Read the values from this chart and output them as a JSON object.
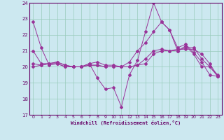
{
  "title": "Windchill (Refroidissement éolien,°C)",
  "bg_color": "#cce8f0",
  "grid_color": "#99ccbb",
  "line_color": "#993399",
  "spine_color": "#660066",
  "xlim": [
    -0.5,
    23.5
  ],
  "ylim": [
    17,
    24
  ],
  "yticks": [
    17,
    18,
    19,
    20,
    21,
    22,
    23,
    24
  ],
  "xticks": [
    0,
    1,
    2,
    3,
    4,
    5,
    6,
    7,
    8,
    9,
    10,
    11,
    12,
    13,
    14,
    15,
    16,
    17,
    18,
    19,
    20,
    21,
    22,
    23
  ],
  "series": [
    {
      "x": [
        0,
        1,
        2,
        3,
        4,
        5,
        6,
        7,
        8,
        9,
        10,
        11,
        12,
        13,
        14,
        15,
        16,
        17,
        18,
        19,
        20,
        21,
        22,
        23
      ],
      "y": [
        22.8,
        21.2,
        20.1,
        20.2,
        20.0,
        20.0,
        20.0,
        20.2,
        19.3,
        18.6,
        18.7,
        17.5,
        19.5,
        20.4,
        22.2,
        24.0,
        22.8,
        22.3,
        21.2,
        21.4,
        20.9,
        20.3,
        19.5,
        19.4
      ]
    },
    {
      "x": [
        0,
        1,
        2,
        3,
        4,
        5,
        6,
        7,
        8,
        9,
        10,
        11,
        12,
        13,
        14,
        15,
        16,
        17,
        18,
        19,
        20,
        21,
        22,
        23
      ],
      "y": [
        21.0,
        20.2,
        20.2,
        20.3,
        20.1,
        20.0,
        20.0,
        20.1,
        20.1,
        20.0,
        20.0,
        20.0,
        20.3,
        21.0,
        21.5,
        22.2,
        22.8,
        22.3,
        21.0,
        21.3,
        20.8,
        20.0,
        20.0,
        19.4
      ]
    },
    {
      "x": [
        0,
        1,
        2,
        3,
        4,
        5,
        6,
        7,
        8,
        9,
        10,
        11,
        12,
        13,
        14,
        15,
        16,
        17,
        18,
        19,
        20,
        21,
        22,
        23
      ],
      "y": [
        20.2,
        20.1,
        20.2,
        20.3,
        20.1,
        20.0,
        20.0,
        20.2,
        20.3,
        20.1,
        20.1,
        20.0,
        20.0,
        20.1,
        20.2,
        20.8,
        21.0,
        21.0,
        21.0,
        21.2,
        21.2,
        20.5,
        20.0,
        19.5
      ]
    },
    {
      "x": [
        0,
        1,
        2,
        3,
        4,
        5,
        6,
        7,
        8,
        9,
        10,
        11,
        12,
        13,
        14,
        15,
        16,
        17,
        18,
        19,
        20,
        21,
        22,
        23
      ],
      "y": [
        20.0,
        20.1,
        20.2,
        20.2,
        20.0,
        20.0,
        20.0,
        20.1,
        20.1,
        20.0,
        20.0,
        20.0,
        20.0,
        20.1,
        20.5,
        21.0,
        21.1,
        21.0,
        21.1,
        21.1,
        21.1,
        20.8,
        20.2,
        19.4
      ]
    }
  ]
}
